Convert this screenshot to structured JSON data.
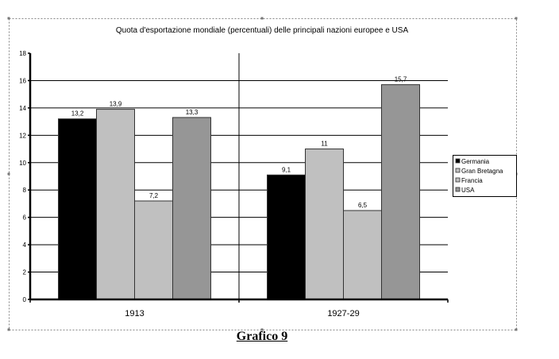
{
  "chart_data": {
    "type": "bar",
    "title": "Quota d'esportazione mondiale (percentuali) delle principali nazioni europee e USA",
    "categories": [
      "1913",
      "1927-29"
    ],
    "series": [
      {
        "name": "Germania",
        "values": [
          13.2,
          9.1
        ],
        "labels": [
          "13,2",
          "9,1"
        ],
        "color": "#000000"
      },
      {
        "name": "Gran Bretagna",
        "values": [
          13.9,
          11
        ],
        "labels": [
          "13,9",
          "11"
        ],
        "color": "#c0c0c0"
      },
      {
        "name": "Francia",
        "values": [
          7.2,
          6.5
        ],
        "labels": [
          "7,2",
          "6,5"
        ],
        "color": "#c0c0c0"
      },
      {
        "name": "USA",
        "values": [
          13.3,
          15.7
        ],
        "labels": [
          "13,3",
          "15,7"
        ],
        "color": "#969696"
      }
    ],
    "ylim": [
      0,
      18
    ],
    "yticks": [
      0,
      2,
      4,
      6,
      8,
      10,
      12,
      14,
      16,
      18
    ],
    "grid": true,
    "legend": "right",
    "xlabel": "",
    "ylabel": ""
  },
  "caption": "Grafico 9"
}
